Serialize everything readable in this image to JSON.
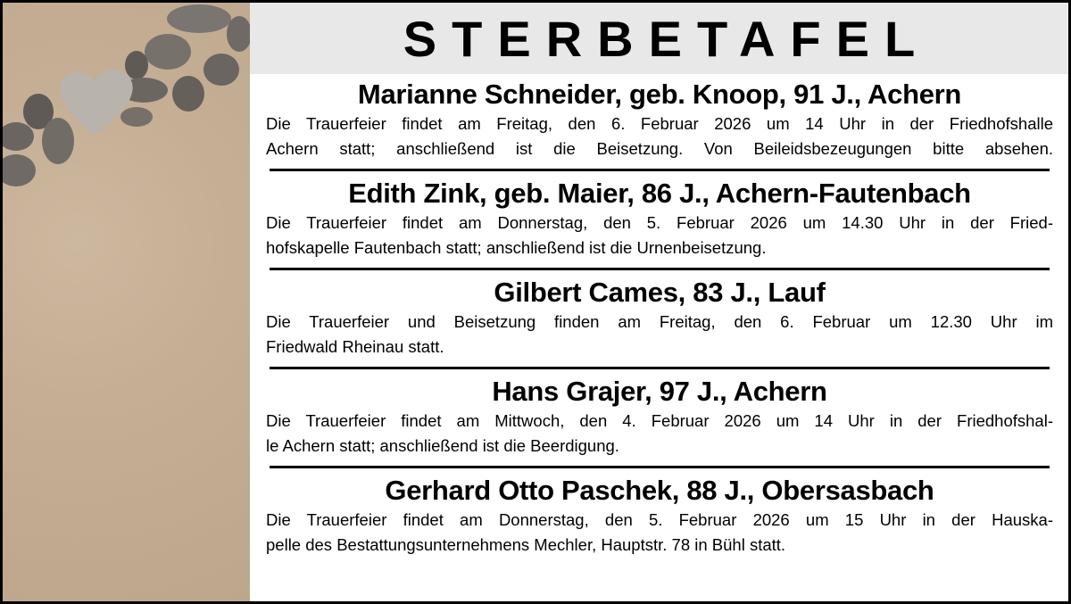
{
  "header": {
    "title": "STERBETAFEL"
  },
  "entries": [
    {
      "name": "Marianne Schneider, geb. Knoop, 91 J., Achern",
      "lines": [
        "Die Trauerfeier findet am Freitag, den 6. Februar 2026 um 14 Uhr in der Friedhofshalle",
        "Achern statt; anschließend ist die Beisetzung. Von Beileidsbezeugungen bitte absehen."
      ],
      "last_justified": true
    },
    {
      "name": "Edith Zink, geb. Maier, 86 J., Achern-Fautenbach",
      "lines": [
        "Die Trauerfeier findet am Donnerstag, den 5. Februar 2026 um 14.30 Uhr in der Fried-",
        "hofskapelle Fautenbach statt; anschließend ist die Urnenbeisetzung."
      ]
    },
    {
      "name": "Gilbert Cames, 83 J., Lauf",
      "lines": [
        "Die Trauerfeier und Beisetzung finden am Freitag, den 6. Februar um 12.30 Uhr im",
        "Friedwald Rheinau statt."
      ]
    },
    {
      "name": "Hans Grajer, 97 J., Achern",
      "lines": [
        "Die Trauerfeier findet am Mittwoch, den 4. Februar 2026 um 14 Uhr in der Friedhofshal-",
        "le Achern statt; anschließend ist die Beerdigung."
      ]
    },
    {
      "name": "Gerhard Otto Paschek, 88 J., Obersasbach",
      "lines": [
        "Die Trauerfeier findet am Donnerstag, den 5. Februar 2026 um 15 Uhr in der Hauska-",
        "pelle des Bestattungsunternehmens Mechler, Hauptstr. 78 in Bühl statt."
      ]
    }
  ]
}
